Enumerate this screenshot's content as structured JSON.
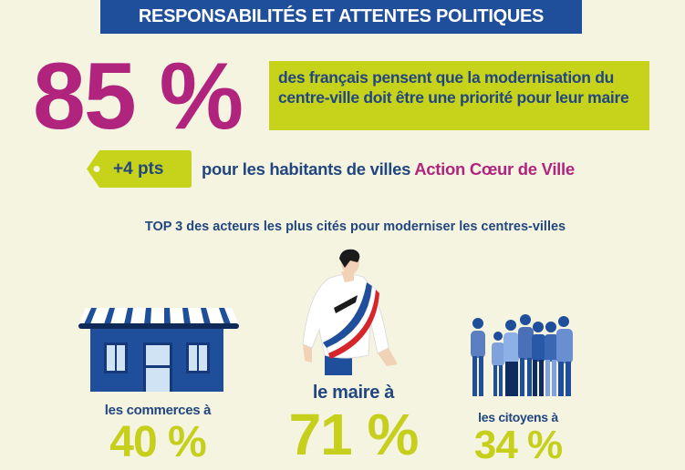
{
  "header": {
    "title": "RESPONSABILITÉS ET ATTENTES POLITIQUES"
  },
  "headline": {
    "value": "85 %",
    "text": "des français pensent que la modernisation du centre-ville doit être une priorité pour leur maire"
  },
  "highlight": {
    "tag": "+4 pts",
    "text": "pour les habitants de villes ",
    "emphasis": "Action Cœur de Ville"
  },
  "top3": {
    "title": "TOP 3 des acteurs les plus cités pour moderniser les centres-villes",
    "items": [
      {
        "label": "les commerces à",
        "value": "40 %",
        "icon": "shop-icon"
      },
      {
        "label": "le maire à",
        "value": "71 %",
        "icon": "mayor-icon"
      },
      {
        "label": "les citoyens à",
        "value": "34 %",
        "icon": "citizens-icon"
      }
    ]
  },
  "colors": {
    "blue": "#1f4f9b",
    "magenta": "#b1247e",
    "lime": "#c7d21b",
    "text": "#22467f",
    "background": "#f5f4e1"
  }
}
